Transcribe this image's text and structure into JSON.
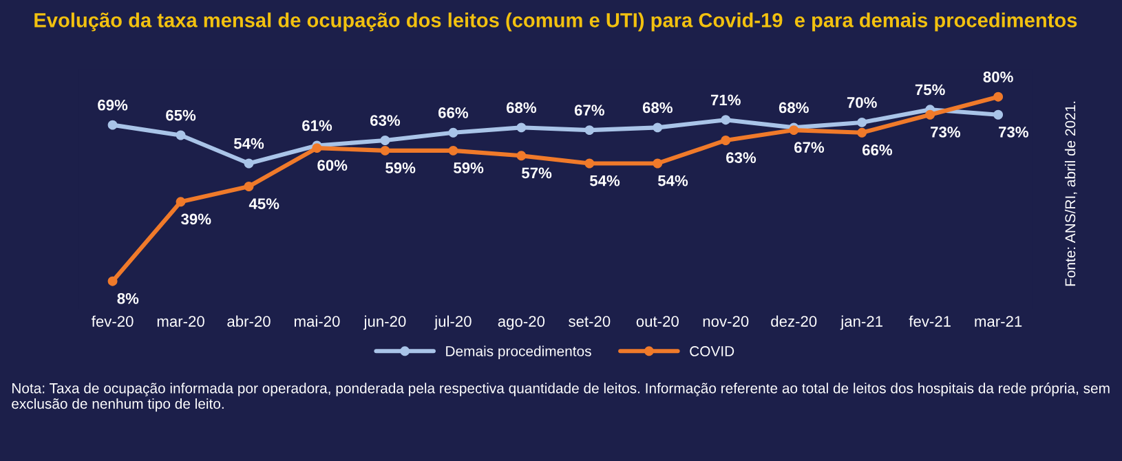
{
  "chart_data": {
    "type": "line",
    "title": "Evolução da taxa mensal de ocupação dos leitos (comum e UTI) para Covid-19  e para demais procedimentos",
    "categories": [
      "fev-20",
      "mar-20",
      "abr-20",
      "mai-20",
      "jun-20",
      "jul-20",
      "ago-20",
      "set-20",
      "out-20",
      "nov-20",
      "dez-20",
      "jan-21",
      "fev-21",
      "mar-21"
    ],
    "series": [
      {
        "name": "Demais procedimentos",
        "color": "#a9c4e8",
        "values": [
          69,
          65,
          54,
          61,
          63,
          66,
          68,
          67,
          68,
          71,
          68,
          70,
          75,
          73
        ],
        "value_labels": [
          "69%",
          "65%",
          "54%",
          "61%",
          "63%",
          "66%",
          "68%",
          "67%",
          "68%",
          "71%",
          "68%",
          "70%",
          "75%",
          "73%"
        ]
      },
      {
        "name": "COVID",
        "color": "#f07a2a",
        "values": [
          8,
          39,
          45,
          60,
          59,
          59,
          57,
          54,
          54,
          63,
          67,
          66,
          73,
          80
        ],
        "value_labels": [
          "8%",
          "39%",
          "45%",
          "60%",
          "59%",
          "59%",
          "57%",
          "54%",
          "54%",
          "63%",
          "67%",
          "66%",
          "73%",
          "80%"
        ]
      }
    ],
    "marker": "circle",
    "line_style": "solid",
    "legend": "bottom",
    "tick_labels": "x",
    "annotations": [
      "Fonte: ANS/RI, abril de 2021.",
      "Nota: Taxa de ocupação informada por operadora, ponderada pela respectiva quantidade de leitos. Informação referente ao total de leitos dos hospitais da rede própria, sem exclusão de nenhum tipo de leito."
    ]
  }
}
